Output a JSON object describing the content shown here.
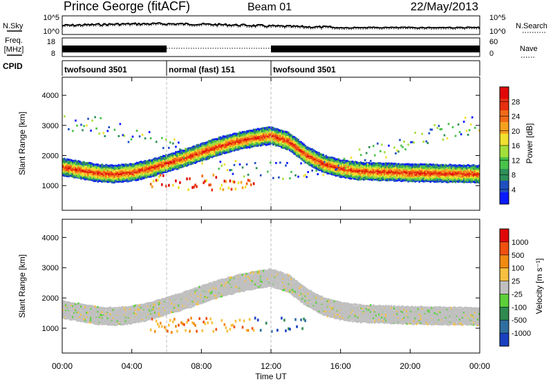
{
  "header": {
    "station": "Prince George (fitACF)",
    "beam": "Beam 01",
    "date": "22/May/2013"
  },
  "top_panels": {
    "nsky_label": "N.Sky",
    "nsearch_label": "N.Search",
    "noise_ticks_left": [
      "10^5",
      "10^0"
    ],
    "noise_ticks_right": [
      "10^5",
      "10^0"
    ],
    "freq_label_line1": "Freq.",
    "freq_label_line2": "[MHz]",
    "freq_ticks": [
      "18",
      "8"
    ],
    "nave_label": "Nave",
    "nave_ticks": [
      "60",
      "0"
    ],
    "cpid_label": "CPID",
    "cpid_segments": [
      {
        "label": "twofsound 3501",
        "start_h": 0,
        "end_h": 6
      },
      {
        "label": "normal (fast) 151",
        "start_h": 6,
        "end_h": 12
      },
      {
        "label": "twofsound 3501",
        "start_h": 12,
        "end_h": 24
      }
    ]
  },
  "chart_data": [
    {
      "type": "heatmap",
      "title": "",
      "ylabel": "Slant Range [km]",
      "xlabel": "",
      "xlim_hours": [
        0,
        24
      ],
      "ylim": [
        180,
        4600
      ],
      "yticks": [
        "1000",
        "2000",
        "3000",
        "4000"
      ],
      "colorbar": {
        "label": "Power [dB]",
        "ticks": [
          "28",
          "24",
          "20",
          "16",
          "12",
          "8",
          "4"
        ],
        "colors": [
          "#0a1aff",
          "#1f4fc0",
          "#2e8f58",
          "#49c24a",
          "#a3df3a",
          "#f0e030",
          "#f6a020",
          "#f06a18",
          "#e83010",
          "#e00808"
        ]
      },
      "bands": [
        {
          "name": "main",
          "x": [
            0,
            1,
            2,
            3,
            4,
            5,
            6,
            7,
            8,
            9,
            10,
            11,
            12,
            13,
            14,
            15,
            16,
            17,
            18,
            19,
            20,
            21,
            22,
            23,
            24
          ],
          "y": [
            1650,
            1550,
            1450,
            1420,
            1480,
            1600,
            1780,
            1950,
            2150,
            2350,
            2500,
            2620,
            2700,
            2500,
            2050,
            1750,
            1600,
            1520,
            1500,
            1480,
            1460,
            1450,
            1440,
            1430,
            1420
          ]
        }
      ]
    },
    {
      "type": "heatmap",
      "title": "",
      "ylabel": "Slant Range [km]",
      "xlabel": "Time UT",
      "xlim_hours": [
        0,
        24
      ],
      "ylim": [
        180,
        4600
      ],
      "yticks": [
        "1000",
        "2000",
        "3000",
        "4000"
      ],
      "xticks": [
        "00:00",
        "04:00",
        "08:00",
        "12:00",
        "16:00",
        "20:00",
        "00:00"
      ],
      "colorbar": {
        "label": "Velocity [m s⁻¹]",
        "ticks": [
          "1000",
          "500",
          "100",
          "25",
          "-25",
          "-100",
          "-500",
          "-1000"
        ],
        "colors": [
          "#1840c0",
          "#2e6fa0",
          "#2f8a50",
          "#5cd03a",
          "#c0c0c0",
          "#f7c040",
          "#f08a10",
          "#f05010",
          "#e00808"
        ]
      }
    }
  ]
}
